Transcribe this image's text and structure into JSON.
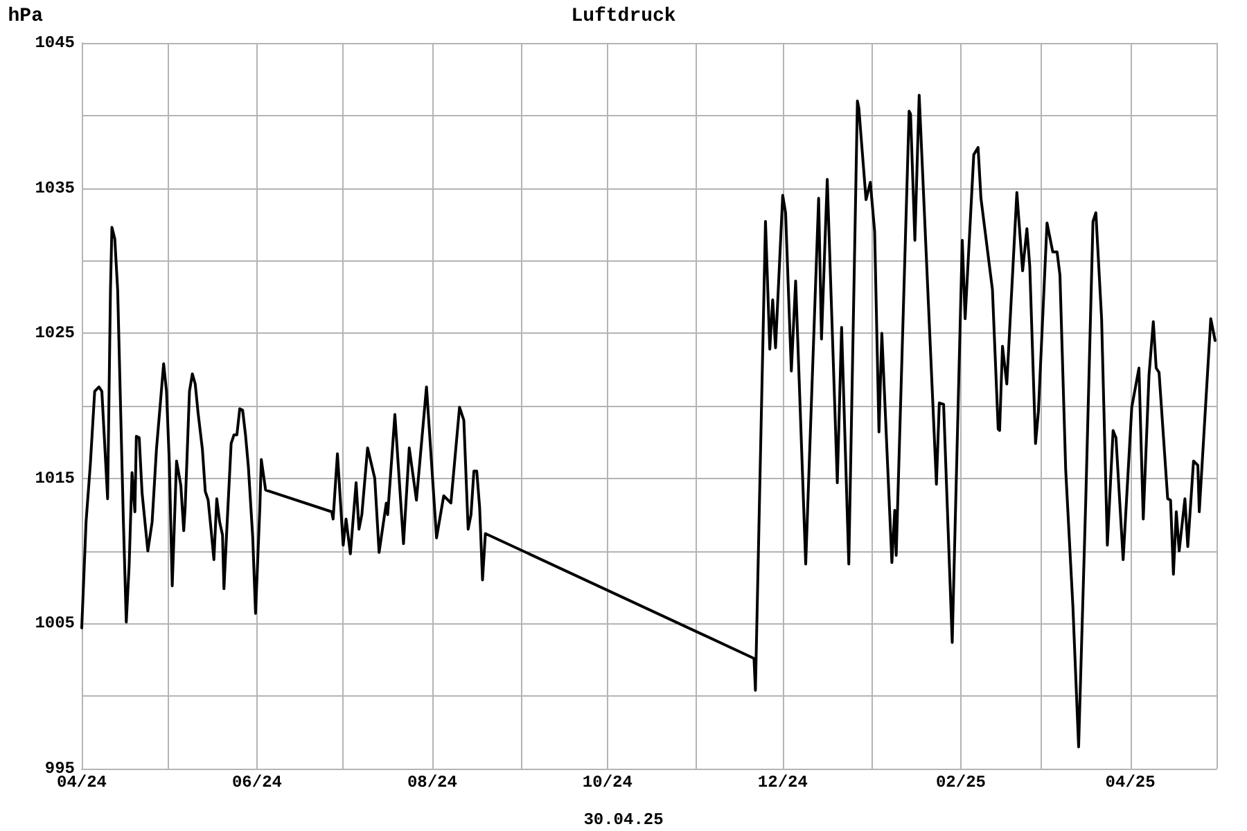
{
  "chart_data": {
    "type": "line",
    "title": "Luftdruck",
    "ylabel": "hPa",
    "annotations": [
      "30.04.25"
    ],
    "xlim": [
      "2024-04-01",
      "2025-05-01"
    ],
    "xticks": [
      {
        "value": "2024-04-01",
        "label": "04/24"
      },
      {
        "value": "2024-05-01",
        "label": null
      },
      {
        "value": "2024-06-01",
        "label": "06/24"
      },
      {
        "value": "2024-07-01",
        "label": null
      },
      {
        "value": "2024-08-01",
        "label": "08/24"
      },
      {
        "value": "2024-09-01",
        "label": null
      },
      {
        "value": "2024-10-01",
        "label": "10/24"
      },
      {
        "value": "2024-11-01",
        "label": null
      },
      {
        "value": "2024-12-01",
        "label": "12/24"
      },
      {
        "value": "2025-01-01",
        "label": null
      },
      {
        "value": "2025-02-01",
        "label": "02/25"
      },
      {
        "value": "2025-03-01",
        "label": null
      },
      {
        "value": "2025-04-01",
        "label": "04/25"
      },
      {
        "value": "2025-05-01",
        "label": null
      }
    ],
    "ylim": [
      995,
      1045
    ],
    "yticks": [
      995,
      {
        "value": 1000,
        "label": null
      },
      1005,
      {
        "value": 1010,
        "label": null
      },
      1015,
      {
        "value": 1020,
        "label": null
      },
      1025,
      {
        "value": 1030,
        "label": null
      },
      1035,
      {
        "value": 1040,
        "label": null
      },
      1045
    ],
    "grid": true,
    "marker": "none",
    "line_style": "solid",
    "series": [
      {
        "color": "#000000",
        "x": [
          "2024-04-01",
          "2024-04-02T12:00",
          "2024-04-04",
          "2024-04-05T12:00",
          "2024-04-07",
          "2024-04-08",
          "2024-04-10",
          "2024-04-11",
          "2024-04-11T12:00",
          "2024-04-12T12:00",
          "2024-04-13T12:00",
          "2024-04-14T12:00",
          "2024-04-15T12:00",
          "2024-04-16T12:00",
          "2024-04-17T12:00",
          "2024-04-18T12:00",
          "2024-04-19T12:00",
          "2024-04-20",
          "2024-04-21",
          "2024-04-22",
          "2024-04-24",
          "2024-04-25T12:00",
          "2024-04-27",
          "2024-04-28T12:00",
          "2024-04-29T12:00",
          "2024-04-30T12:00",
          "2024-05-01T12:00",
          "2024-05-02T12:00",
          "2024-05-04",
          "2024-05-05T12:00",
          "2024-05-06T12:00",
          "2024-05-07",
          "2024-05-08T12:00",
          "2024-05-09T12:00",
          "2024-05-10T12:00",
          "2024-05-11T12:00",
          "2024-05-13",
          "2024-05-14",
          "2024-05-15",
          "2024-05-16",
          "2024-05-17",
          "2024-05-18",
          "2024-05-19",
          "2024-05-20",
          "2024-05-20T12:00",
          "2024-05-21T12:00",
          "2024-05-23",
          "2024-05-24",
          "2024-05-25",
          "2024-05-26",
          "2024-05-27",
          "2024-05-28",
          "2024-05-29",
          "2024-05-30T12:00",
          "2024-05-31T12:00",
          "2024-06-02",
          "2024-06-02T12:00",
          "2024-06-04",
          "2024-06-27",
          "2024-06-27T12:00",
          "2024-06-29",
          "2024-07-01",
          "2024-07-02",
          "2024-07-03T12:00",
          "2024-07-05T12:00",
          "2024-07-06T12:00",
          "2024-07-07T12:00",
          "2024-07-09T12:00",
          "2024-07-12",
          "2024-07-13T12:00",
          "2024-07-16",
          "2024-07-16T12:00",
          "2024-07-19",
          "2024-07-22",
          "2024-07-24",
          "2024-07-26T12:00",
          "2024-07-30",
          "2024-08-02T12:00",
          "2024-08-05",
          "2024-08-07T12:00",
          "2024-08-10T12:00",
          "2024-08-12",
          "2024-08-13T12:00",
          "2024-08-14T12:00",
          "2024-08-15T12:00",
          "2024-08-16T12:00",
          "2024-08-17T12:00",
          "2024-08-18T12:00",
          "2024-08-19T12:00",
          "2024-11-21",
          "2024-11-21T12:00",
          "2024-11-25",
          "2024-11-26T12:00",
          "2024-11-27T12:00",
          "2024-11-28T12:00",
          "2024-12-01",
          "2024-12-02",
          "2024-12-04",
          "2024-12-05T12:00",
          "2024-12-09",
          "2024-12-13T12:00",
          "2024-12-14T12:00",
          "2024-12-16T12:00",
          "2024-12-20",
          "2024-12-21T12:00",
          "2024-12-24",
          "2024-12-27",
          "2024-12-27T12:00",
          "2024-12-30",
          "2024-12-31T12:00",
          "2025-01-02",
          "2025-01-03T12:00",
          "2025-01-04T12:00",
          "2025-01-08",
          "2025-01-09",
          "2025-01-09T12:00",
          "2025-01-14",
          "2025-01-14T12:00",
          "2025-01-16",
          "2025-01-17T12:00",
          "2025-01-23T12:00",
          "2025-01-24T12:00",
          "2025-01-26",
          "2025-01-29",
          "2025-02-01T12:00",
          "2025-02-02T12:00",
          "2025-02-05T12:00",
          "2025-02-07",
          "2025-02-08",
          "2025-02-12",
          "2025-02-14",
          "2025-02-14T12:00",
          "2025-02-15T12:00",
          "2025-02-17",
          "2025-02-20T12:00",
          "2025-02-22T12:00",
          "2025-02-24",
          "2025-02-25",
          "2025-02-27",
          "2025-02-28",
          "2025-03-03",
          "2025-03-05",
          "2025-03-06T12:00",
          "2025-03-07T12:00",
          "2025-03-09T12:00",
          "2025-03-12",
          "2025-03-14",
          "2025-03-16T12:00",
          "2025-03-19",
          "2025-03-20",
          "2025-03-22",
          "2025-03-24",
          "2025-03-26",
          "2025-03-27",
          "2025-03-29T12:00",
          "2025-04-01T12:00",
          "2025-04-04",
          "2025-04-05T12:00",
          "2025-04-07T12:00",
          "2025-04-09",
          "2025-04-10",
          "2025-04-11",
          "2025-04-14",
          "2025-04-15",
          "2025-04-16",
          "2025-04-17",
          "2025-04-18",
          "2025-04-20",
          "2025-04-21",
          "2025-04-23",
          "2025-04-24T12:00",
          "2025-04-25",
          "2025-04-29",
          "2025-04-30T12:00"
        ],
        "values": [
          1004.7,
          1012,
          1016,
          1021,
          1021.3,
          1021,
          1013.6,
          1028,
          1032.3,
          1031.5,
          1028,
          1020,
          1012,
          1005.1,
          1009,
          1015.4,
          1012.7,
          1017.9,
          1017.8,
          1014,
          1010,
          1012,
          1017,
          1020.5,
          1022.9,
          1021,
          1016,
          1007.6,
          1016.2,
          1014.5,
          1011.4,
          1013,
          1021,
          1022.2,
          1021.5,
          1019.5,
          1017,
          1014.1,
          1013.5,
          1011.5,
          1009.4,
          1013.6,
          1012,
          1011.1,
          1007.4,
          1011.5,
          1017.4,
          1018,
          1018,
          1019.8,
          1019.7,
          1018,
          1015.8,
          1011,
          1005.7,
          1013,
          1016.3,
          1014.2,
          1012.7,
          1012.2,
          1016.7,
          1010.4,
          1012.2,
          1009.8,
          1014.7,
          1011.5,
          1012.5,
          1017.1,
          1015,
          1009.9,
          1013.3,
          1012.5,
          1019.4,
          1010.5,
          1017.1,
          1013.5,
          1021.3,
          1010.9,
          1013.8,
          1013.3,
          1019.9,
          1019,
          1011.5,
          1012.5,
          1015.5,
          1015.5,
          1013,
          1008,
          1011.2,
          1002.6,
          1000.4,
          1032.7,
          1023.9,
          1027.3,
          1024,
          1034.5,
          1033.3,
          1022.4,
          1028.6,
          1009.1,
          1034.3,
          1024.6,
          1035.6,
          1014.7,
          1025.4,
          1009.1,
          1041,
          1040.5,
          1034.2,
          1035.4,
          1032,
          1018.2,
          1025,
          1009.2,
          1012.8,
          1009.7,
          1040.3,
          1040.1,
          1031.4,
          1041.4,
          1014.6,
          1020.2,
          1020.1,
          1003.7,
          1031.4,
          1026,
          1037.3,
          1037.8,
          1034.3,
          1028,
          1018.4,
          1018.3,
          1024.1,
          1021.5,
          1034.7,
          1029.3,
          1032.2,
          1029.6,
          1017.4,
          1019.6,
          1032.6,
          1030.6,
          1030.6,
          1029,
          1015.6,
          1006.2,
          996.5,
          1013.6,
          1032.7,
          1033.3,
          1026,
          1010.4,
          1018.3,
          1017.8,
          1009.4,
          1019.9,
          1022.6,
          1012.2,
          1022.1,
          1025.8,
          1022.6,
          1022.3,
          1013.6,
          1013.5,
          1008.4,
          1012.7,
          1010,
          1013.6,
          1010.3,
          1016.2,
          1015.9,
          1012.7,
          1026,
          1024.5
        ]
      }
    ]
  }
}
